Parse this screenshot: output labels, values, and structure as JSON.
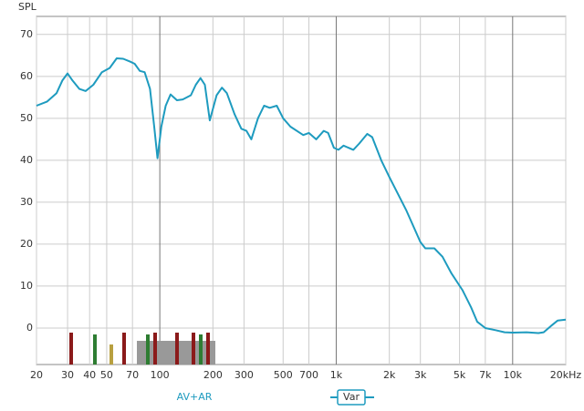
{
  "chart_data": {
    "type": "line",
    "y_label": "SPL",
    "x_log": true,
    "grid": true,
    "xlim": [
      20,
      20000
    ],
    "ylim": [
      -8.7,
      74.3
    ],
    "xticks": [
      20,
      30,
      40,
      50,
      70,
      100,
      200,
      300,
      500,
      700,
      {
        "value": 1000,
        "label": "1k"
      },
      {
        "value": 2000,
        "label": "2k"
      },
      {
        "value": 3000,
        "label": "3k"
      },
      {
        "value": 5000,
        "label": "5k"
      },
      {
        "value": 7000,
        "label": "7k"
      },
      {
        "value": 10000,
        "label": "10k"
      },
      {
        "value": 20000,
        "label": "20kHz"
      }
    ],
    "yticks": [
      0,
      10,
      20,
      30,
      40,
      50,
      60,
      70
    ],
    "annotation": "AV+AR",
    "series": [
      {
        "name": "Var",
        "color": "#1e9bbf",
        "x": [
          20,
          23,
          26,
          28,
          30,
          32,
          35,
          38,
          42,
          47,
          52,
          57,
          62,
          68,
          72,
          77,
          82,
          88,
          93,
          97,
          102,
          108,
          115,
          125,
          135,
          150,
          160,
          170,
          180,
          192,
          210,
          225,
          240,
          265,
          290,
          310,
          330,
          360,
          390,
          420,
          460,
          500,
          550,
          650,
          700,
          770,
          850,
          900,
          970,
          1030,
          1100,
          1250,
          1350,
          1500,
          1600,
          1800,
          2000,
          2500,
          3000,
          3200,
          3600,
          4000,
          4500,
          5200,
          5800,
          6300,
          7000,
          8000,
          9000,
          10000,
          12000,
          14000,
          15000,
          16500,
          18000,
          20000
        ],
        "values": [
          53,
          54,
          56,
          59,
          60.7,
          59,
          57,
          56.5,
          58,
          61,
          62,
          64.3,
          64.2,
          63.5,
          63,
          61.3,
          61,
          57,
          48,
          40.5,
          48,
          53,
          55.7,
          54.3,
          54.5,
          55.5,
          58,
          59.6,
          58,
          49.5,
          55.5,
          57.3,
          56,
          51,
          47.5,
          47,
          45,
          50,
          53,
          52.5,
          53,
          50,
          48,
          46,
          46.5,
          45,
          47,
          46.5,
          43,
          42.5,
          43.5,
          42.5,
          44,
          46.3,
          45.5,
          40,
          36,
          28,
          20.5,
          19,
          19,
          17,
          13,
          9,
          5,
          1.5,
          0,
          -0.5,
          -1,
          -1.1,
          -1,
          -1.2,
          -1,
          0.5,
          1.8,
          2
        ]
      }
    ]
  }
}
